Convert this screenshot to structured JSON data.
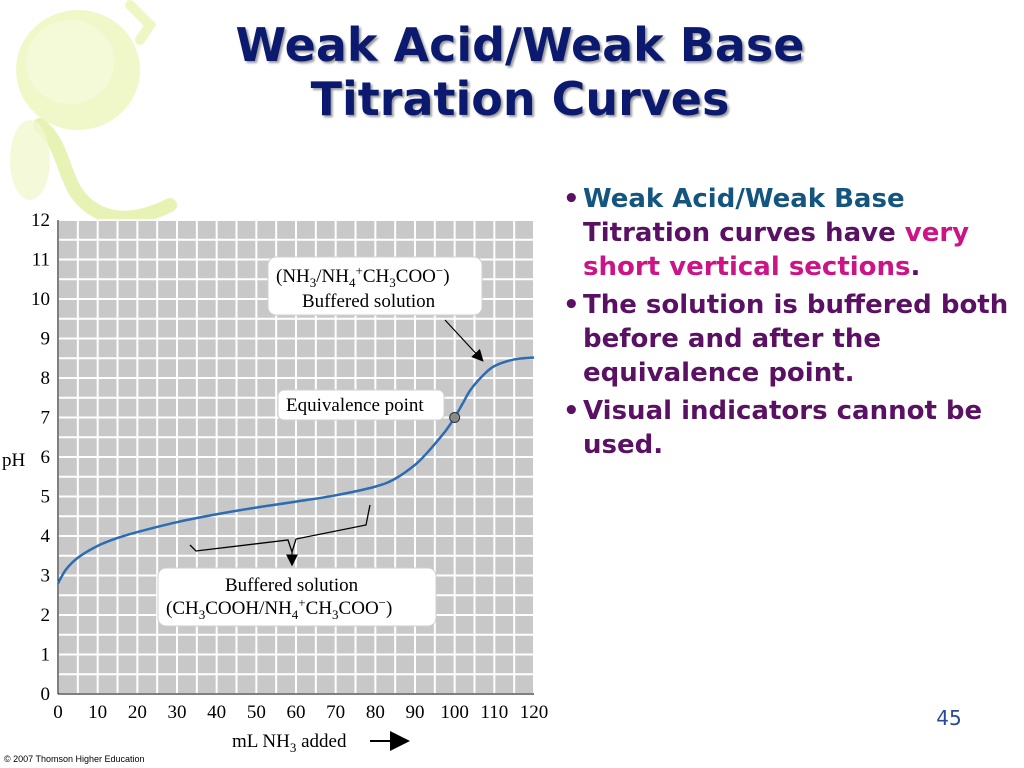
{
  "slide": {
    "title_line1": "Weak Acid/Weak Base",
    "title_line2": "Titration Curves",
    "slide_number": "45",
    "copyright": "© 2007 Thomson Higher Education",
    "colors": {
      "title": "#0b1a6e",
      "bullet_blue": "#13557f",
      "bullet_purple": "#5a1163",
      "bullet_magenta": "#cc1487",
      "curve": "#2b6cb3",
      "plot_bg": "#c8c8c8",
      "grid": "#ffffff"
    }
  },
  "bullets": {
    "b1_part1": "Weak Acid/Weak Base",
    "b1_part2": "Titration curves have ",
    "b1_part3": "very short vertical sections",
    "b1_part4": ".",
    "b2": "The solution is buffered both before and after the equivalence point.",
    "b3": "Visual indicators cannot be used."
  },
  "chart_data": {
    "type": "line",
    "xlabel_main": "mL NH",
    "xlabel_sub": "3",
    "xlabel_tail": " added",
    "ylabel": "pH",
    "xlim": [
      0,
      120
    ],
    "ylim": [
      0,
      12
    ],
    "xticks": [
      0,
      10,
      20,
      30,
      40,
      50,
      60,
      70,
      80,
      90,
      100,
      110,
      120
    ],
    "yticks": [
      0,
      1,
      2,
      3,
      4,
      5,
      6,
      7,
      8,
      9,
      10,
      11,
      12
    ],
    "grid": true,
    "series": [
      {
        "x": [
          0,
          2,
          5,
          10,
          15,
          20,
          30,
          40,
          50,
          60,
          70,
          80,
          85,
          90,
          93,
          96,
          98,
          100,
          102,
          104,
          107,
          110,
          115,
          120
        ],
        "y": [
          2.8,
          3.15,
          3.45,
          3.75,
          3.95,
          4.1,
          4.35,
          4.55,
          4.72,
          4.87,
          5.03,
          5.25,
          5.45,
          5.8,
          6.1,
          6.45,
          6.7,
          7.0,
          7.35,
          7.7,
          8.05,
          8.3,
          8.47,
          8.52
        ]
      }
    ],
    "equivalence_point": {
      "x": 100,
      "y": 7.0
    },
    "annotations": {
      "upper_box": {
        "line1_a": "(NH",
        "line1_s1": "3",
        "line1_b": "/NH",
        "line1_s2": "4",
        "line1_sup1": "+",
        "line1_c": "CH",
        "line1_s3": "3",
        "line1_d": "COO",
        "line1_sup2": "−",
        "line1_e": ")",
        "line2": "Buffered solution"
      },
      "equivalence_label": "Equivalence point",
      "lower_box": {
        "line1": "Buffered solution",
        "line2_a": "(CH",
        "line2_s1": "3",
        "line2_b": "COOH/NH",
        "line2_s2": "4",
        "line2_sup1": "+",
        "line2_c": "CH",
        "line2_s3": "3",
        "line2_d": "COO",
        "line2_sup2": "−",
        "line2_e": ")"
      }
    }
  }
}
